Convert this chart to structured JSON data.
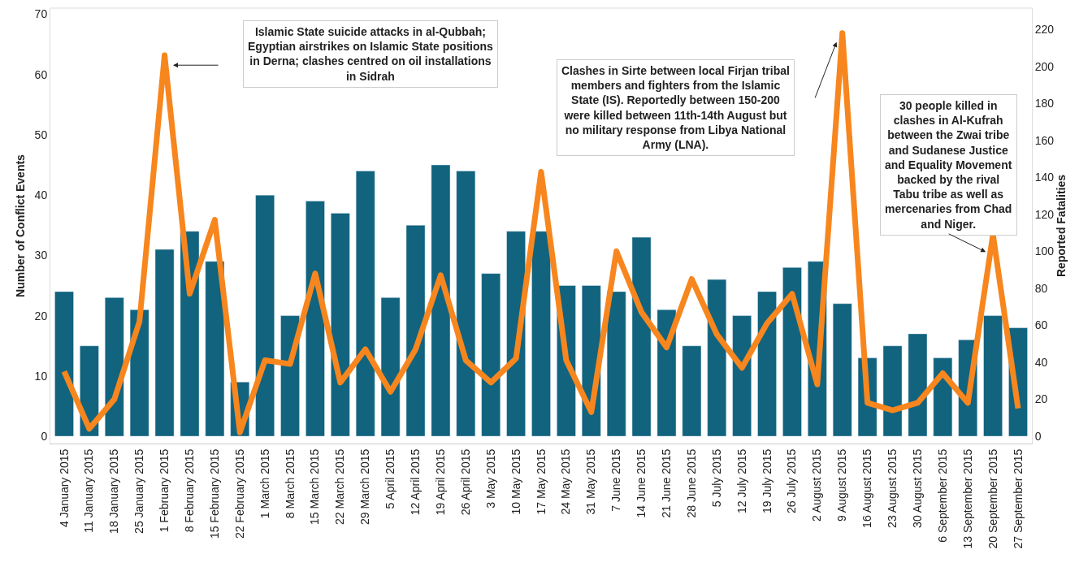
{
  "chart_data": {
    "type": "bar",
    "ylabel": "Number of Conflict Events",
    "y2label": "Reported Fatalities",
    "categories": [
      "4 January 2015",
      "11 January 2015",
      "18 January 2015",
      "25 January 2015",
      "1 February 2015",
      "8 February 2015",
      "15 February 2015",
      "22 February 2015",
      "1 March 2015",
      "8 March 2015",
      "15 March 2015",
      "22 March 2015",
      "29 March 2015",
      "5 April 2015",
      "12 April 2015",
      "19 April 2015",
      "26 April 2015",
      "3 May 2015",
      "10 May 2015",
      "17 May 2015",
      "24 May 2015",
      "31 May 2015",
      "7 June 2015",
      "14 June 2015",
      "21 June 2015",
      "28 June 2015",
      "5 July 2015",
      "12 July 2015",
      "19 July 2015",
      "26 July 2015",
      "2 August 2015",
      "9 August 2015",
      "16 August 2015",
      "23 August 2015",
      "30 August 2015",
      "6 September 2015",
      "13 September 2015",
      "20 September 2015",
      "27 September 2015"
    ],
    "series": [
      {
        "color": "#11637e",
        "values": [
          24,
          15,
          23,
          21,
          31,
          34,
          29,
          9,
          40,
          20,
          39,
          37,
          44,
          23,
          35,
          45,
          44,
          27,
          34,
          34,
          25,
          25,
          24,
          33,
          21,
          15,
          26,
          20,
          24,
          28,
          29,
          22,
          13,
          15,
          17,
          13,
          16,
          20,
          18
        ]
      },
      {
        "type": "line",
        "axis": "y2",
        "color": "#f7861e",
        "values": [
          35,
          4,
          20,
          62,
          206,
          77,
          117,
          2,
          41,
          39,
          88,
          29,
          47,
          24,
          47,
          87,
          41,
          29,
          42,
          143,
          41,
          13,
          100,
          67,
          48,
          85,
          55,
          37,
          61,
          77,
          28,
          218,
          18,
          14,
          18,
          34,
          18,
          109,
          15
        ]
      }
    ],
    "ylim": [
      -1.2,
      71
    ],
    "yticks": [
      0,
      10,
      20,
      30,
      40,
      50,
      60,
      70
    ],
    "y2lim": [
      -4,
      231.5
    ],
    "y2ticks": [
      0,
      20,
      40,
      60,
      80,
      100,
      120,
      140,
      160,
      180,
      200,
      220
    ],
    "annotations": [
      "Islamic State suicide attacks in al-Qubbah;\nEgyptian airstrikes on Islamic State positions\nin Derna; clashes centred on oil installations\nin Sidrah",
      "Clashes in Sirte between local Firjan tribal\nmembers and fighters from the Islamic\nState (IS). Reportedly between 150-200\nwere killed between 11th-14th August but\nno military response from Libya National\nArmy (LNA).",
      "30 people killed in\nclashes in Al-Kufrah\nbetween the Zwai tribe\nand Sudanese Justice\nand Equality Movement\nbacked by the rival\nTabu tribe as well as\nmercenaries from Chad\nand Niger."
    ],
    "line_style": "solid",
    "marker": "none"
  }
}
